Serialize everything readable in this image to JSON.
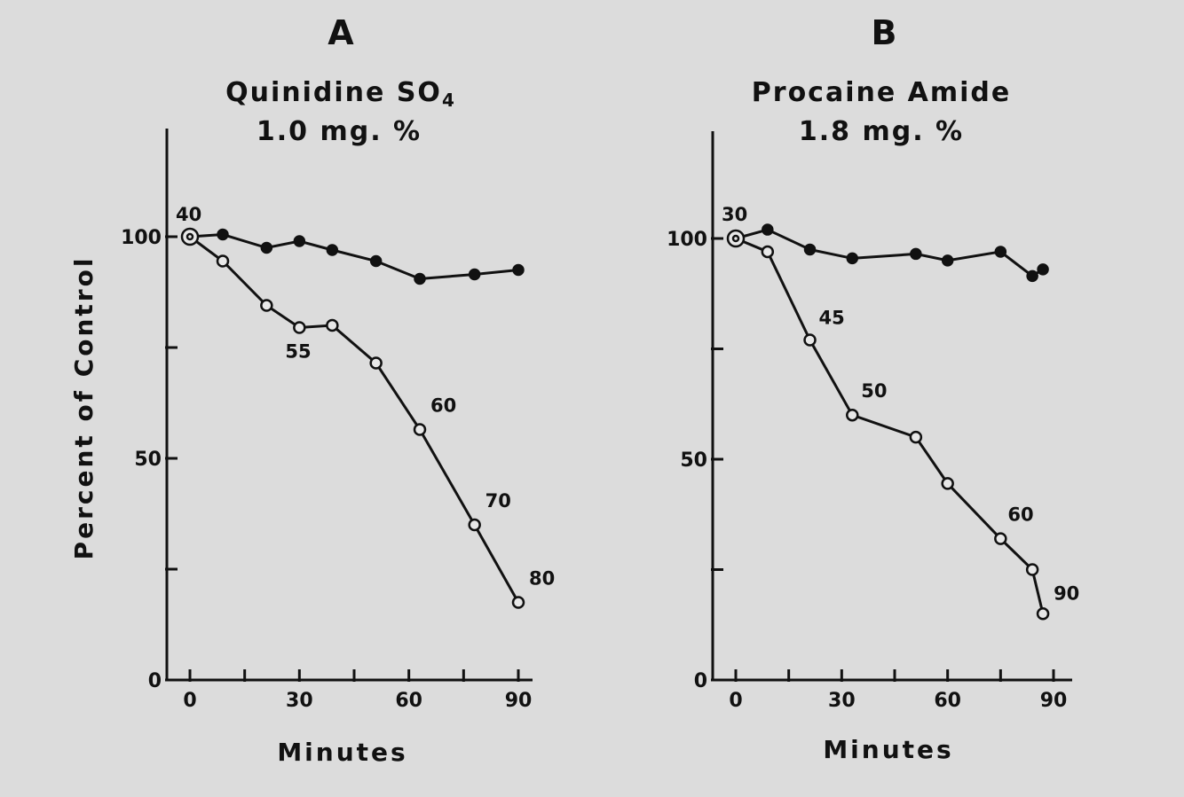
{
  "chart_data": [
    {
      "type": "line",
      "panel_label": "A",
      "title": "Quinidine SO",
      "title_subscript": "4",
      "subtitle": "1.0 mg. %",
      "xlabel": "Minutes",
      "ylabel": "Percent of Control",
      "xlim": [
        0,
        90
      ],
      "ylim": [
        0,
        100
      ],
      "x_ticks": [
        "0",
        "30",
        "60",
        "90"
      ],
      "y_ticks": [
        "0",
        "50",
        "100"
      ],
      "grid": false,
      "series": [
        {
          "marker": "filled",
          "x": [
            0,
            9,
            21,
            30,
            39,
            51,
            63,
            78,
            90
          ],
          "y": [
            100,
            100.5,
            97.5,
            99,
            97,
            94.5,
            90.5,
            91.5,
            92.5
          ]
        },
        {
          "marker": "open",
          "x": [
            0,
            9,
            21,
            30,
            39,
            51,
            63,
            78,
            90
          ],
          "y": [
            100,
            94.5,
            84.5,
            79.5,
            80,
            71.5,
            56.5,
            35,
            17.5
          ]
        }
      ],
      "annotations": [
        {
          "text": "40",
          "x": 0,
          "y": 100
        },
        {
          "text": "55",
          "x": 30,
          "y": 79.5
        },
        {
          "text": "60",
          "x": 63,
          "y": 56.5
        },
        {
          "text": "70",
          "x": 78,
          "y": 35
        },
        {
          "text": "80",
          "x": 90,
          "y": 17.5
        }
      ]
    },
    {
      "type": "line",
      "panel_label": "B",
      "title": "Procaine Amide",
      "subtitle": "1.8 mg. %",
      "xlabel": "Minutes",
      "xlim": [
        0,
        90
      ],
      "ylim": [
        0,
        100
      ],
      "x_ticks": [
        "0",
        "30",
        "60",
        "90"
      ],
      "y_ticks": [
        "0",
        "50",
        "100"
      ],
      "grid": false,
      "series": [
        {
          "marker": "filled",
          "x": [
            0,
            9,
            21,
            33,
            51,
            60,
            75,
            84,
            87
          ],
          "y": [
            100,
            102,
            97.5,
            95.5,
            96.5,
            95,
            97,
            91.5,
            93
          ]
        },
        {
          "marker": "open",
          "x": [
            0,
            9,
            21,
            33,
            51,
            60,
            75,
            84,
            87
          ],
          "y": [
            100,
            97,
            77,
            60,
            55,
            44.5,
            32,
            25,
            15
          ]
        }
      ],
      "annotations": [
        {
          "text": "30",
          "x": 0,
          "y": 100
        },
        {
          "text": "45",
          "x": 21,
          "y": 77
        },
        {
          "text": "50",
          "x": 33,
          "y": 60
        },
        {
          "text": "60",
          "x": 75,
          "y": 32
        },
        {
          "text": "90",
          "x": 87,
          "y": 15
        }
      ]
    }
  ]
}
